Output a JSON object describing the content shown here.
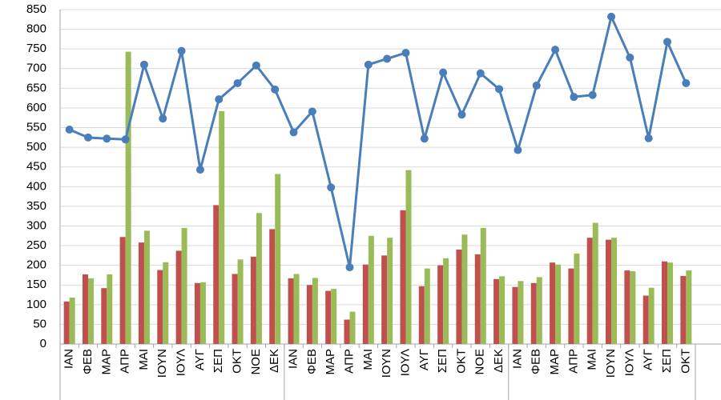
{
  "chart_data": {
    "type": "bar",
    "categories": [
      "ΙΑΝ",
      "ΦΕΒ",
      "ΜΑΡ",
      "ΑΠΡ",
      "ΜΑΙ",
      "ΙΟΥΝ",
      "ΙΟΥΛ",
      "ΑΥΓ",
      "ΣΕΠ",
      "ΟΚΤ",
      "ΝΟΕ",
      "ΔΕΚ",
      "ΙΑΝ",
      "ΦΕΒ",
      "ΜΑΡ",
      "ΑΠΡ",
      "ΜΑΙ",
      "ΙΟΥΝ",
      "ΙΟΥΛ",
      "ΑΥΓ",
      "ΣΕΠ",
      "ΟΚΤ",
      "ΝΟΕ",
      "ΔΕΚ",
      "ΙΑΝ",
      "ΦΕΒ",
      "ΜΑΡ",
      "ΑΠΡ",
      "ΜΑΙ",
      "ΙΟΥΝ",
      "ΙΟΥΛ",
      "ΑΥΓ",
      "ΣΕΠ",
      "ΟΚΤ"
    ],
    "series": [
      {
        "color": "#c0504d",
        "values": [
          108,
          177,
          142,
          272,
          258,
          188,
          237,
          155,
          353,
          178,
          222,
          292,
          167,
          150,
          135,
          62,
          202,
          225,
          340,
          147,
          200,
          240,
          228,
          165,
          145,
          155,
          207,
          192,
          270,
          265,
          187,
          123,
          210,
          173
        ]
      },
      {
        "color": "#9bbb59",
        "values": [
          118,
          167,
          177,
          743,
          288,
          208,
          295,
          157,
          592,
          215,
          333,
          432,
          178,
          168,
          140,
          82,
          275,
          270,
          442,
          192,
          218,
          278,
          295,
          172,
          160,
          170,
          202,
          230,
          308,
          270,
          185,
          143,
          207,
          187
        ]
      },
      {
        "color": "#4a7ebb",
        "type": "line",
        "values": [
          545,
          525,
          522,
          520,
          710,
          573,
          745,
          443,
          622,
          663,
          708,
          647,
          538,
          591,
          398,
          195,
          710,
          725,
          740,
          522,
          690,
          583,
          688,
          648,
          493,
          657,
          748,
          628,
          633,
          832,
          728,
          523,
          768,
          663
        ]
      }
    ],
    "ylim": [
      0,
      850
    ],
    "yticks": [
      0,
      50,
      100,
      150,
      200,
      250,
      300,
      350,
      400,
      450,
      500,
      550,
      600,
      650,
      700,
      750,
      800,
      850
    ],
    "grid": true
  }
}
